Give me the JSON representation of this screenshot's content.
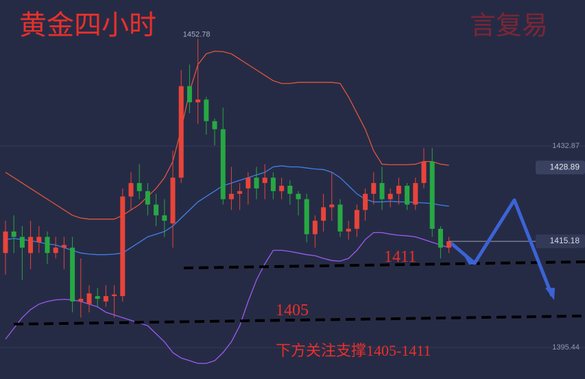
{
  "chart_data": {
    "type": "candlestick",
    "title": "黄金四小时",
    "watermark": "言复易",
    "ylim": [
      1389.6,
      1460
    ],
    "yticks": [
      1432.87,
      1395.44
    ],
    "grid": true,
    "up_color": "#e8443a",
    "down_color": "#27a844",
    "candles": {
      "open": [
        1413,
        1417,
        1416,
        1413,
        1415,
        1416,
        1413,
        1414,
        1414,
        1404,
        1403.5,
        1405,
        1404,
        1405,
        1405,
        1423.5,
        1426,
        1424.5,
        1422,
        1420,
        1418.5,
        1427,
        1444,
        1441,
        1441.5,
        1437.5,
        1436,
        1423,
        1424,
        1425,
        1427,
        1426,
        1427,
        1424.5,
        1425.5,
        1424,
        1423,
        1416.5,
        1419,
        1421.5,
        1422,
        1417,
        1417.5,
        1421,
        1424,
        1426,
        1423,
        1424,
        1425.5,
        1422,
        1426,
        1430,
        1417.5,
        1414
      ],
      "high": [
        1419,
        1420,
        1418,
        1419,
        1418,
        1417,
        1416,
        1416,
        1416,
        1412,
        1407,
        1406.5,
        1407,
        1407,
        1425,
        1428,
        1429.5,
        1426,
        1424,
        1423,
        1432,
        1447,
        1448,
        1452.78,
        1442,
        1438,
        1440,
        1429,
        1426,
        1428,
        1429,
        1429.5,
        1428,
        1427,
        1426.5,
        1424.5,
        1424,
        1420,
        1424,
        1428,
        1423,
        1419,
        1422,
        1425,
        1428,
        1429,
        1425,
        1427,
        1426,
        1427,
        1432.5,
        1432.5,
        1418,
        1416
      ],
      "low": [
        1409,
        1413,
        1408,
        1410,
        1413,
        1411,
        1412,
        1410,
        1402,
        1401,
        1402,
        1403,
        1403,
        1401,
        1404,
        1421,
        1423,
        1420,
        1418,
        1416,
        1414,
        1426,
        1439,
        1437,
        1435,
        1433,
        1422,
        1421,
        1421,
        1422,
        1423,
        1423,
        1423,
        1423,
        1422,
        1420,
        1415,
        1414,
        1417,
        1419,
        1416,
        1415.5,
        1416,
        1419,
        1422,
        1421,
        1421.5,
        1422,
        1421,
        1421,
        1425,
        1416,
        1412,
        1413
      ],
      "close": [
        1417,
        1416,
        1414,
        1416,
        1416,
        1413,
        1414,
        1414.5,
        1404,
        1404.5,
        1405.5,
        1404.5,
        1405,
        1405.3,
        1423.5,
        1426,
        1424.5,
        1422,
        1420,
        1419,
        1427,
        1444,
        1441,
        1441.5,
        1437.5,
        1436,
        1423,
        1424,
        1424.5,
        1427,
        1425,
        1427,
        1424.5,
        1425.5,
        1424,
        1423,
        1416.5,
        1419,
        1421.5,
        1422,
        1417,
        1417.5,
        1421,
        1424,
        1426,
        1423,
        1424,
        1425.5,
        1422,
        1426,
        1430,
        1417.5,
        1414,
        1415.18
      ]
    },
    "lines": [
      {
        "color": "#e0573c",
        "values": [
          1428,
          1427,
          1426,
          1425,
          1424,
          1423,
          1422,
          1421,
          1420,
          1419.5,
          1419.3,
          1419.3,
          1419.3,
          1419.3,
          1420,
          1421,
          1422,
          1423.5,
          1425,
          1427,
          1430,
          1436,
          1443,
          1448,
          1450,
          1450.5,
          1450.4,
          1450,
          1449,
          1448,
          1447,
          1446,
          1445,
          1444.5,
          1444.5,
          1444.7,
          1444.7,
          1444.7,
          1444.7,
          1444.7,
          1444.5,
          1442,
          1439,
          1436,
          1432,
          1429.5,
          1429.4,
          1429.4,
          1429.4,
          1429.5,
          1430,
          1430,
          1429.5,
          1429.3
        ]
      },
      {
        "color": "#3f82ea",
        "values": [
          1415.5,
          1415.7,
          1415.5,
          1415.3,
          1415,
          1414.7,
          1414.5,
          1414,
          1413.5,
          1413,
          1412.8,
          1412.7,
          1412.7,
          1412.8,
          1413,
          1414,
          1415,
          1416,
          1416.5,
          1417,
          1418,
          1419.5,
          1421,
          1422.5,
          1423.5,
          1424.5,
          1425.5,
          1426,
          1426.5,
          1427,
          1427.5,
          1428,
          1429,
          1429.2,
          1429,
          1429,
          1428.8,
          1428.6,
          1428.5,
          1428,
          1427,
          1425.5,
          1424,
          1423,
          1422.5,
          1422.5,
          1422.6,
          1422.5,
          1422.5,
          1422.4,
          1422.3,
          1422.2,
          1421.9,
          1421.7
        ]
      },
      {
        "color": "#9b5cf2",
        "values": [
          1397,
          1399,
          1401,
          1402.5,
          1403.5,
          1404,
          1404.3,
          1404.4,
          1404.3,
          1404,
          1403.5,
          1403,
          1402,
          1401.5,
          1401,
          1400.5,
          1400,
          1399.5,
          1398,
          1396.5,
          1394.5,
          1393.5,
          1393,
          1392.5,
          1392.5,
          1393,
          1394.5,
          1396.5,
          1399.5,
          1404,
          1408,
          1411,
          1413.5,
          1413.5,
          1413.3,
          1413,
          1412.7,
          1412.5,
          1412,
          1411.6,
          1411.5,
          1412,
          1413.5,
          1415.5,
          1416.8,
          1416.8,
          1416.5,
          1416.3,
          1416.2,
          1416,
          1415.5,
          1415,
          1414.5,
          1414
        ]
      }
    ],
    "high_label": 1452.78,
    "band_label": 1428.89,
    "last_price": 1415.18,
    "annotations": [
      "1411",
      "1405",
      "下方关注支撑1405-1411"
    ]
  }
}
